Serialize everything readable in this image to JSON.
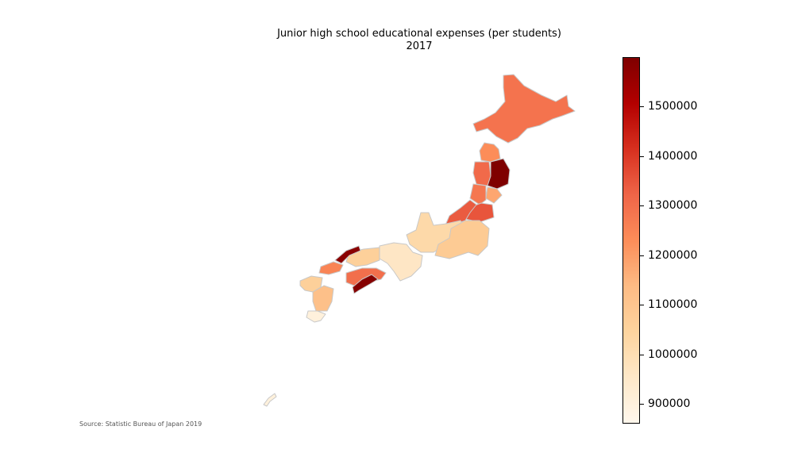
{
  "title_line1": "Junior high school educational expenses (per students)",
  "title_line2": "2017",
  "source": "Source: Statistic Bureau of Japan 2019",
  "colorbar": {
    "cmap": "OrRd",
    "min": 860000,
    "max": 1600000,
    "colors": [
      "#fff7ec",
      "#fee8c8",
      "#fdd49e",
      "#fdbb84",
      "#fc8d59",
      "#ef6548",
      "#d7301f",
      "#b30000",
      "#7f0000"
    ],
    "ticks": [
      {
        "value": 900000,
        "label": "900000"
      },
      {
        "value": 1000000,
        "label": "1000000"
      },
      {
        "value": 1100000,
        "label": "1100000"
      },
      {
        "value": 1200000,
        "label": "1200000"
      },
      {
        "value": 1300000,
        "label": "1300000"
      },
      {
        "value": 1400000,
        "label": "1400000"
      },
      {
        "value": 1500000,
        "label": "1500000"
      }
    ]
  },
  "regions": [
    {
      "name": "Hokkaido",
      "value": 1290000
    },
    {
      "name": "Aomori",
      "value": 1230000
    },
    {
      "name": "Iwate",
      "value": 1600000
    },
    {
      "name": "Akita",
      "value": 1310000
    },
    {
      "name": "Miyagi",
      "value": 1180000
    },
    {
      "name": "Yamagata",
      "value": 1280000
    },
    {
      "name": "Fukushima",
      "value": 1350000
    },
    {
      "name": "Niigata",
      "value": 1340000
    },
    {
      "name": "Kanto",
      "value": 1080000
    },
    {
      "name": "Chubu",
      "value": 1020000
    },
    {
      "name": "Kansai",
      "value": 960000
    },
    {
      "name": "Shimane",
      "value": 1580000
    },
    {
      "name": "Tottori-Okayama",
      "value": 1060000
    },
    {
      "name": "Hiroshima-Yamaguchi",
      "value": 1250000
    },
    {
      "name": "Shikoku-North",
      "value": 1300000
    },
    {
      "name": "Kochi",
      "value": 1590000
    },
    {
      "name": "Kyushu-North",
      "value": 1060000
    },
    {
      "name": "Kyushu-South",
      "value": 1120000
    },
    {
      "name": "Kagoshima",
      "value": 900000
    },
    {
      "name": "Okinawa",
      "value": 900000
    }
  ]
}
